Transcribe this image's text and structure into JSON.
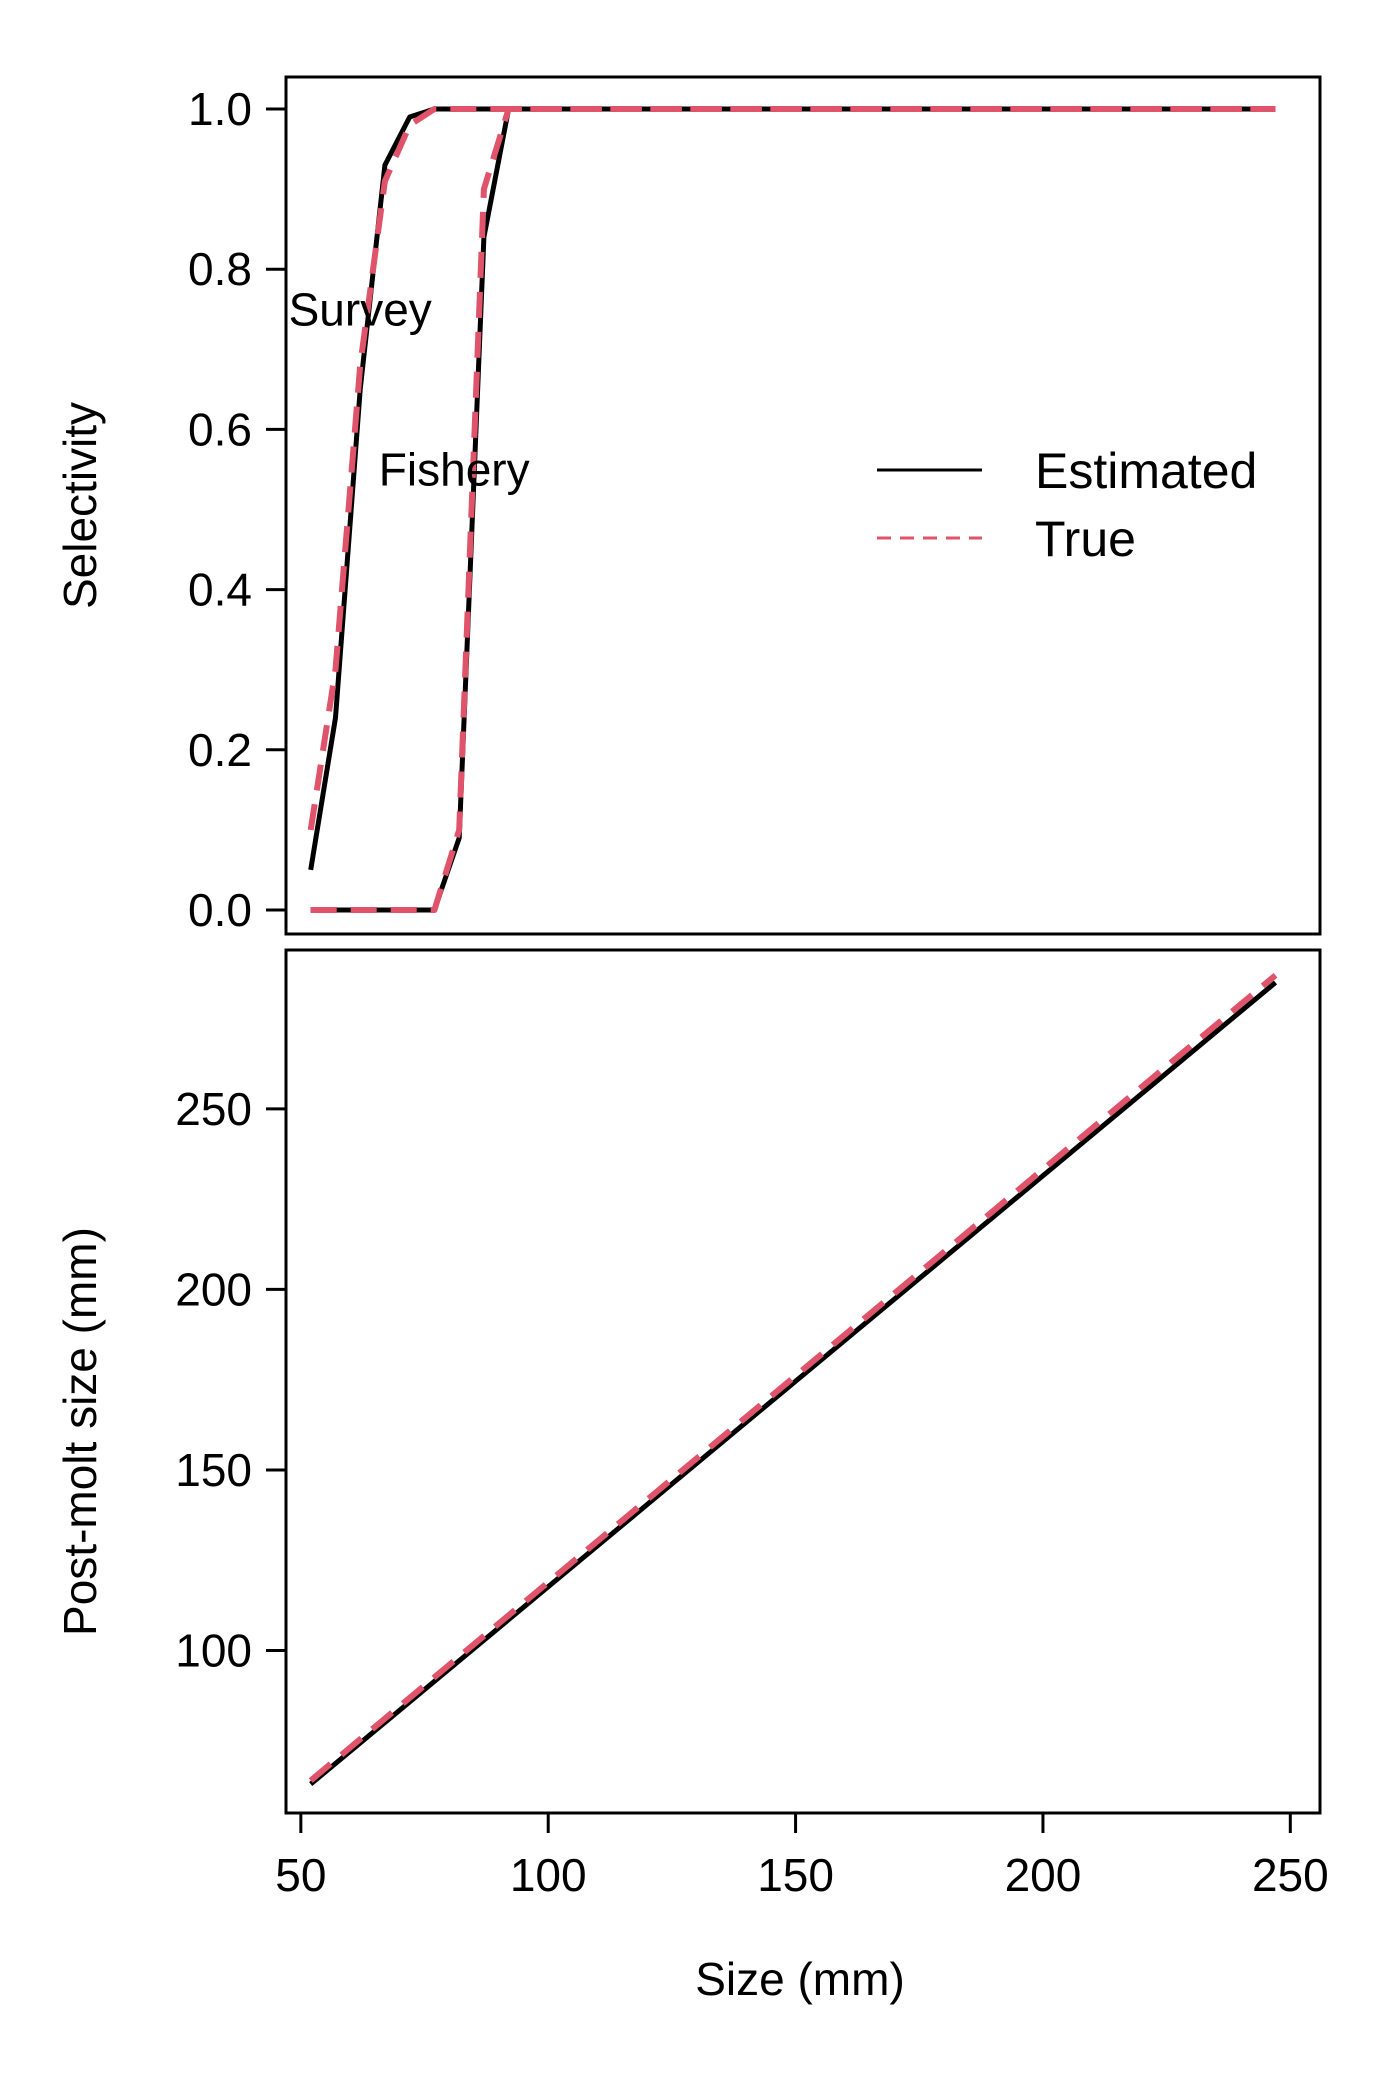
{
  "chart_data": [
    {
      "type": "line",
      "panel": "top",
      "title": "",
      "xlabel": "",
      "ylabel": "Selectivity",
      "xlim": [
        47,
        256
      ],
      "ylim": [
        -0.03,
        1.04
      ],
      "yticks": [
        0.0,
        0.2,
        0.4,
        0.6,
        0.8,
        1.0
      ],
      "ytick_labels": [
        "0.0",
        "0.2",
        "0.4",
        "0.6",
        "0.8",
        "1.0"
      ],
      "legend": {
        "position": "right-middle",
        "entries": [
          "Estimated",
          "True"
        ]
      },
      "annotations": [
        {
          "text": "Survey",
          "x": 62,
          "y": 0.75
        },
        {
          "text": "Fishery",
          "x": 81,
          "y": 0.55
        }
      ],
      "series": [
        {
          "legend": "Estimated",
          "group": "Survey",
          "color": "#000000",
          "style": "solid",
          "x": [
            52,
            57,
            62,
            67,
            72,
            77,
            82,
            87,
            92,
            97,
            102,
            247
          ],
          "y": [
            0.05,
            0.24,
            0.65,
            0.93,
            0.99,
            1.0,
            1.0,
            1.0,
            1.0,
            1.0,
            1.0,
            1.0
          ]
        },
        {
          "legend": "True",
          "group": "Survey",
          "color": "#df536b",
          "style": "dashed",
          "x": [
            52,
            57,
            62,
            67,
            72,
            77,
            82,
            87,
            92,
            97,
            102,
            247
          ],
          "y": [
            0.1,
            0.3,
            0.68,
            0.91,
            0.98,
            1.0,
            1.0,
            1.0,
            1.0,
            1.0,
            1.0,
            1.0
          ]
        },
        {
          "legend": "Estimated",
          "group": "Fishery",
          "color": "#000000",
          "style": "solid",
          "x": [
            52,
            57,
            62,
            67,
            72,
            77,
            82,
            87,
            92,
            97,
            102,
            247
          ],
          "y": [
            0.0,
            0.0,
            0.0,
            0.0,
            0.0,
            0.0,
            0.09,
            0.84,
            1.0,
            1.0,
            1.0,
            1.0
          ]
        },
        {
          "legend": "True",
          "group": "Fishery",
          "color": "#df536b",
          "style": "dashed",
          "x": [
            52,
            57,
            62,
            67,
            72,
            77,
            82,
            87,
            92,
            97,
            102,
            247
          ],
          "y": [
            0.0,
            0.0,
            0.0,
            0.0,
            0.0,
            0.0,
            0.1,
            0.9,
            1.0,
            1.0,
            1.0,
            1.0
          ]
        }
      ]
    },
    {
      "type": "line",
      "panel": "bottom",
      "title": "",
      "xlabel": "Size (mm)",
      "ylabel": "Post-molt size (mm)",
      "xlim": [
        47,
        256
      ],
      "ylim": [
        55,
        294
      ],
      "xticks": [
        50,
        100,
        150,
        200,
        250
      ],
      "xtick_labels": [
        "50",
        "100",
        "150",
        "200",
        "250"
      ],
      "yticks": [
        100,
        150,
        200,
        250
      ],
      "ytick_labels": [
        "100",
        "150",
        "200",
        "250"
      ],
      "series": [
        {
          "legend": "Estimated",
          "color": "#000000",
          "style": "solid",
          "x": [
            52,
            247
          ],
          "y": [
            63,
            285
          ]
        },
        {
          "legend": "True",
          "color": "#df536b",
          "style": "dashed",
          "x": [
            52,
            247
          ],
          "y": [
            64,
            287
          ]
        }
      ]
    }
  ]
}
